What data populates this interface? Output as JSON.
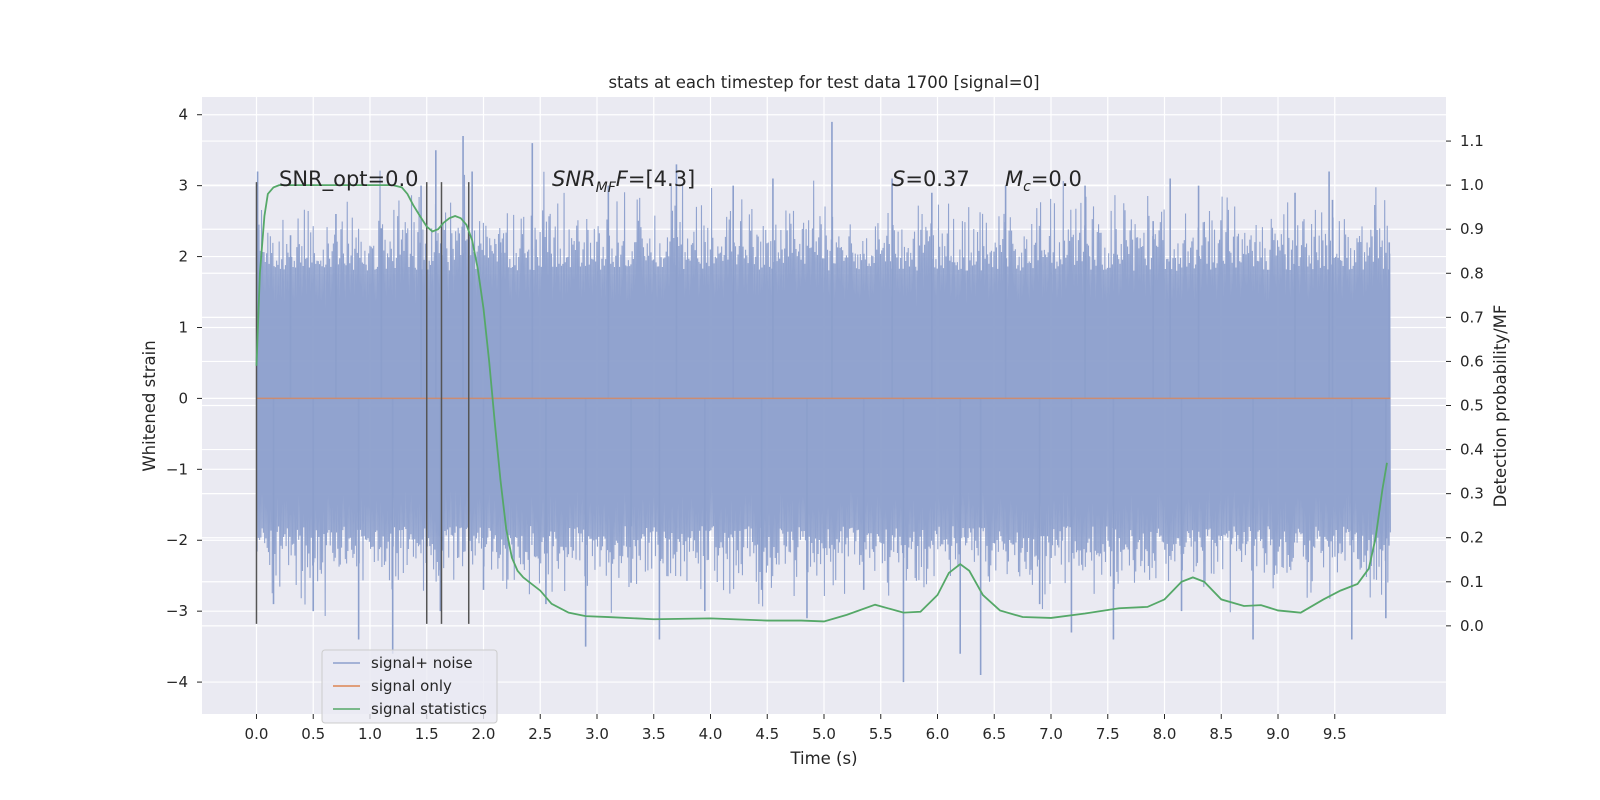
{
  "chart_data": {
    "type": "line",
    "title": "stats at each timestep for test data 1700 [signal=0]",
    "xlabel": "Time (s)",
    "ylabel": "Whitened strain",
    "ylabel_right": "Detection probability/MF",
    "xlim": [
      -0.48,
      10.48
    ],
    "ylim": [
      -4.45,
      4.25
    ],
    "ylim_right": [
      -0.2,
      1.2
    ],
    "xticks": [
      "0.0",
      "0.5",
      "1.0",
      "1.5",
      "2.0",
      "2.5",
      "3.0",
      "3.5",
      "4.0",
      "4.5",
      "5.0",
      "5.5",
      "6.0",
      "6.5",
      "7.0",
      "7.5",
      "8.0",
      "8.5",
      "9.0",
      "9.5"
    ],
    "yticks": [
      "−4",
      "−3",
      "−2",
      "−1",
      "0",
      "1",
      "2",
      "3",
      "4"
    ],
    "yticks_right": [
      "0.0",
      "0.1",
      "0.2",
      "0.3",
      "0.4",
      "0.5",
      "0.6",
      "0.7",
      "0.8",
      "0.9",
      "1.0",
      "1.1"
    ],
    "grid": true,
    "legend_position": "bottom-left",
    "annotations": {
      "snr_opt": "SNR_opt=0.0",
      "snr_mf_base": "SNR",
      "snr_mf_sub": "MF",
      "snr_mf_tail": "=[4.3]",
      "s_label": "S",
      "s_value": "=0.37",
      "mc_base": "M",
      "mc_sub": "c",
      "mc_value": "=0.0"
    },
    "colors": {
      "noise": "#8c9fcc",
      "signal": "#dd8452",
      "stats": "#55a868",
      "marker": "#555555",
      "background": "#eaeaf2",
      "grid": "#ffffff"
    },
    "markers_x": [
      0.0,
      1.5,
      1.63,
      1.87
    ],
    "series": [
      {
        "name": "signal+ noise",
        "kind": "noise",
        "envelope": {
          "typical_abs": 1.8,
          "peaks": [
            [
              0.01,
              3.2
            ],
            [
              0.15,
              -2.9
            ],
            [
              0.3,
              2.3
            ],
            [
              0.5,
              -3.0
            ],
            [
              0.7,
              2.6
            ],
            [
              0.9,
              -3.4
            ],
            [
              1.1,
              2.4
            ],
            [
              1.2,
              -3.6
            ],
            [
              1.45,
              3.0
            ],
            [
              1.58,
              3.5
            ],
            [
              1.62,
              -3.0
            ],
            [
              1.82,
              3.7
            ],
            [
              1.9,
              3.2
            ],
            [
              2.0,
              -2.7
            ],
            [
              2.15,
              2.2
            ],
            [
              2.43,
              3.6
            ],
            [
              2.55,
              -2.9
            ],
            [
              2.9,
              -3.5
            ],
            [
              3.1,
              3.0
            ],
            [
              3.3,
              -2.6
            ],
            [
              3.55,
              -3.4
            ],
            [
              3.7,
              3.3
            ],
            [
              3.95,
              -3.0
            ],
            [
              4.2,
              3.0
            ],
            [
              4.45,
              -2.7
            ],
            [
              4.55,
              3.1
            ],
            [
              4.85,
              -3.1
            ],
            [
              5.07,
              3.9
            ],
            [
              5.35,
              -2.7
            ],
            [
              5.6,
              3.1
            ],
            [
              5.7,
              -4.0
            ],
            [
              5.95,
              2.9
            ],
            [
              6.2,
              -3.6
            ],
            [
              6.38,
              -3.9
            ],
            [
              6.6,
              3.0
            ],
            [
              6.9,
              -2.9
            ],
            [
              7.18,
              -3.3
            ],
            [
              7.3,
              3.0
            ],
            [
              7.55,
              -3.4
            ],
            [
              7.9,
              2.5
            ],
            [
              8.05,
              3.1
            ],
            [
              8.15,
              -3.0
            ],
            [
              8.3,
              3.0
            ],
            [
              8.78,
              -3.4
            ],
            [
              9.15,
              2.9
            ],
            [
              9.45,
              3.2
            ],
            [
              9.48,
              2.8
            ],
            [
              9.65,
              -3.4
            ],
            [
              9.95,
              -3.1
            ],
            [
              9.98,
              2.2
            ]
          ]
        }
      },
      {
        "name": "signal only",
        "kind": "flat",
        "x": [
          0.0,
          9.99
        ],
        "y": [
          0.0,
          0.0
        ]
      },
      {
        "name": "signal statistics",
        "kind": "smooth",
        "axis": "right",
        "x": [
          0.0,
          0.03,
          0.07,
          0.1,
          0.15,
          0.2,
          0.3,
          0.5,
          0.8,
          1.0,
          1.2,
          1.28,
          1.33,
          1.38,
          1.44,
          1.5,
          1.55,
          1.6,
          1.65,
          1.7,
          1.75,
          1.8,
          1.85,
          1.9,
          1.95,
          2.0,
          2.05,
          2.1,
          2.15,
          2.2,
          2.25,
          2.3,
          2.35,
          2.4,
          2.5,
          2.6,
          2.75,
          2.9,
          3.1,
          3.5,
          4.0,
          4.5,
          4.8,
          5.0,
          5.2,
          5.45,
          5.7,
          5.85,
          6.0,
          6.1,
          6.2,
          6.28,
          6.4,
          6.55,
          6.75,
          7.0,
          7.3,
          7.6,
          7.85,
          8.0,
          8.15,
          8.25,
          8.35,
          8.5,
          8.7,
          8.85,
          9.0,
          9.2,
          9.4,
          9.55,
          9.7,
          9.8,
          9.86,
          9.92,
          9.96
        ],
        "y": [
          0.59,
          0.8,
          0.93,
          0.98,
          0.995,
          1.0,
          1.0,
          1.0,
          1.0,
          1.0,
          1.0,
          0.995,
          0.98,
          0.955,
          0.93,
          0.906,
          0.895,
          0.9,
          0.915,
          0.925,
          0.93,
          0.925,
          0.91,
          0.875,
          0.81,
          0.72,
          0.6,
          0.46,
          0.33,
          0.22,
          0.155,
          0.125,
          0.11,
          0.1,
          0.08,
          0.05,
          0.03,
          0.022,
          0.02,
          0.015,
          0.017,
          0.012,
          0.012,
          0.01,
          0.025,
          0.048,
          0.03,
          0.032,
          0.07,
          0.12,
          0.14,
          0.125,
          0.07,
          0.035,
          0.02,
          0.018,
          0.028,
          0.04,
          0.043,
          0.06,
          0.1,
          0.11,
          0.1,
          0.06,
          0.045,
          0.047,
          0.035,
          0.03,
          0.06,
          0.08,
          0.095,
          0.13,
          0.2,
          0.31,
          0.37
        ]
      }
    ]
  }
}
